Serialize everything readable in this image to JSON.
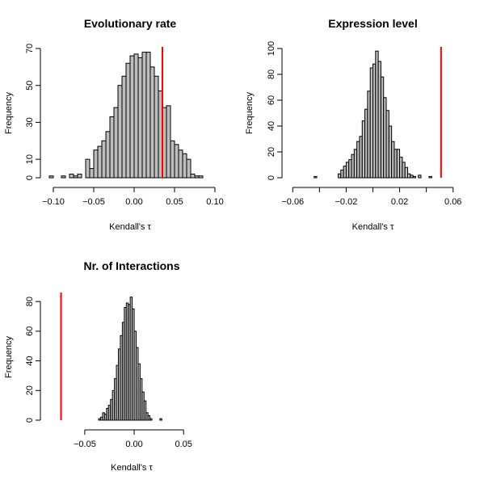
{
  "chart_data": [
    {
      "type": "histogram",
      "title": "Evolutionary rate",
      "xlabel": "Kendall's τ",
      "ylabel": "Frequency",
      "xlim": [
        -0.11,
        0.1
      ],
      "ylim": [
        0,
        70
      ],
      "xticks": [
        -0.1,
        -0.05,
        0.0,
        0.05,
        0.1
      ],
      "xtick_labels": [
        "−0.10",
        "−0.05",
        "0.00",
        "0.05",
        "0.10"
      ],
      "yticks": [
        0,
        10,
        30,
        50,
        70
      ],
      "bin_width": 0.005,
      "bin_start": -0.105,
      "counts": [
        1,
        0,
        0,
        1,
        0,
        2,
        1,
        2,
        0,
        10,
        5,
        15,
        17,
        20,
        25,
        33,
        38,
        50,
        55,
        62,
        66,
        67,
        65,
        68,
        68,
        60,
        55,
        47,
        38,
        39,
        20,
        18,
        15,
        13,
        10,
        2,
        1,
        1
      ],
      "observed": 0.035
    },
    {
      "type": "histogram",
      "title": "Expression level",
      "xlabel": "Kendall's τ",
      "ylabel": "Frequency",
      "xlim": [
        -0.065,
        0.065
      ],
      "ylim": [
        0,
        100
      ],
      "xticks": [
        -0.06,
        -0.04,
        -0.02,
        0.0,
        0.02,
        0.04,
        0.06
      ],
      "xtick_labels": [
        "−0.06",
        "",
        "−0.02",
        "",
        "0.02",
        "",
        "0.06"
      ],
      "yticks": [
        0,
        20,
        40,
        60,
        80,
        100
      ],
      "bin_width": 0.002,
      "bin_start": -0.044,
      "counts": [
        1,
        0,
        0,
        0,
        0,
        0,
        0,
        0,
        0,
        3,
        6,
        9,
        12,
        14,
        18,
        22,
        28,
        32,
        44,
        53,
        67,
        85,
        88,
        98,
        90,
        78,
        62,
        52,
        40,
        28,
        22,
        22,
        16,
        12,
        8,
        3,
        2,
        1,
        0,
        2,
        0,
        0,
        0,
        1
      ],
      "observed": 0.051
    },
    {
      "type": "histogram",
      "title": "Nr. of Interactions",
      "xlabel": "Kendall's τ",
      "ylabel": "Frequency",
      "xlim": [
        -0.09,
        0.085
      ],
      "ylim": [
        0,
        85
      ],
      "xticks": [
        -0.05,
        0.0,
        0.05
      ],
      "xtick_labels": [
        "−0.05",
        "0.00",
        "0.05"
      ],
      "yticks": [
        0,
        20,
        40,
        60,
        80
      ],
      "bin_width": 0.002,
      "bin_start": -0.036,
      "counts": [
        1,
        2,
        5,
        4,
        8,
        10,
        14,
        20,
        28,
        37,
        48,
        57,
        66,
        76,
        79,
        78,
        83,
        75,
        60,
        49,
        38,
        28,
        19,
        13,
        5,
        3,
        1,
        0,
        0,
        0,
        0,
        1
      ],
      "observed": -0.074
    }
  ]
}
